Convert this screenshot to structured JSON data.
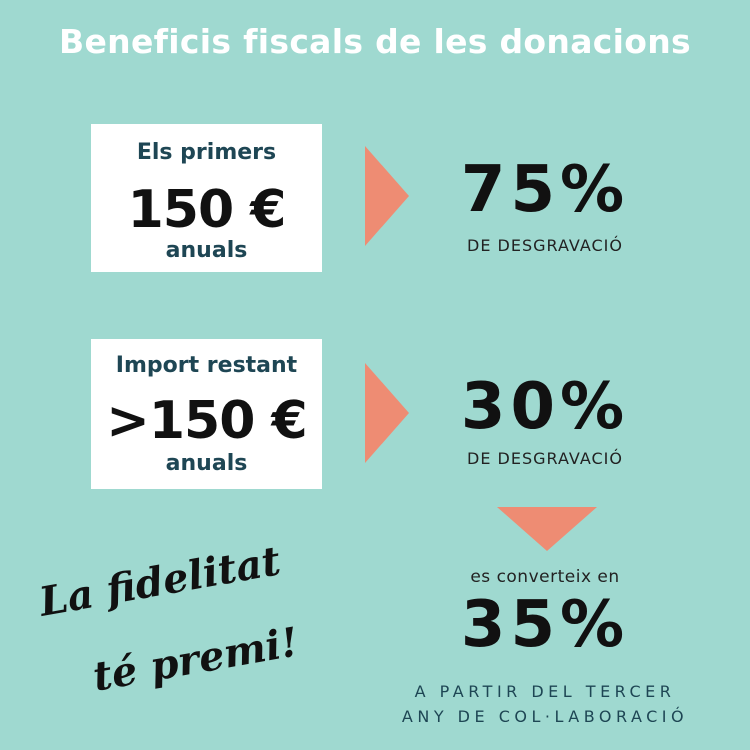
{
  "title": "Beneficis fiscals de les donacions",
  "tier1": {
    "line1": "Els primers",
    "amount": "150 €",
    "line3": "anuals",
    "percent": "75%",
    "label": "DE DESGRAVACIÓ"
  },
  "tier2": {
    "line1": "Import restant",
    "amount": ">150 €",
    "line3": "anuals",
    "percent": "30%",
    "label": "DE DESGRAVACIÓ"
  },
  "loyalty": {
    "converts": "es converteix en",
    "percent": "35%",
    "footer_line1": "A PARTIR DEL TERCER",
    "footer_line2": "ANY DE COL·LABORACIÓ"
  },
  "slogan": {
    "line1": "La fidelitat",
    "line2": "té premi!"
  },
  "colors": {
    "background": "#9fd9d0",
    "accent": "#ee8c73",
    "dark_teal": "#1e4654"
  }
}
